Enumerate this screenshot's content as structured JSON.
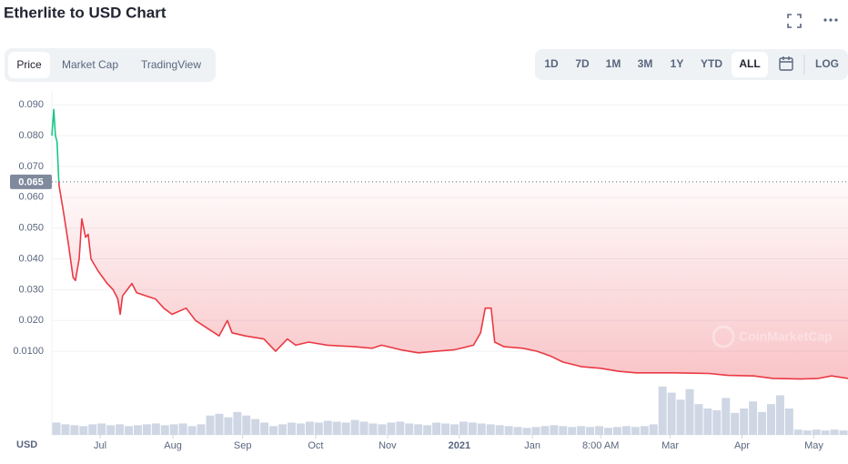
{
  "header": {
    "title": "Etherlite to USD Chart"
  },
  "tabs": [
    "Price",
    "Market Cap",
    "TradingView"
  ],
  "ranges": [
    "1D",
    "7D",
    "1M",
    "3M",
    "1Y",
    "YTD",
    "ALL"
  ],
  "log": "LOG",
  "chart_data": {
    "type": "line",
    "y_axis_label": "USD",
    "watermark": "CoinMarketCap",
    "up_color": "#16c784",
    "down_color": "#ea3943",
    "reference_price": {
      "value": 0.065,
      "label": "0.065"
    },
    "xlim": [
      0,
      338
    ],
    "ylim": [
      0,
      0.0945
    ],
    "grid": true,
    "xticks": [
      {
        "value": 20.5,
        "label": "Jul"
      },
      {
        "value": 51.4,
        "label": "Aug"
      },
      {
        "value": 81,
        "label": "Sep"
      },
      {
        "value": 112,
        "label": "Oct"
      },
      {
        "value": 142.5,
        "label": "Nov"
      },
      {
        "value": 173,
        "label": "2021"
      },
      {
        "value": 204,
        "label": "Jan"
      },
      {
        "value": 233,
        "label": "8:00 AM"
      },
      {
        "value": 262.5,
        "label": "Mar"
      },
      {
        "value": 293,
        "label": "Apr"
      },
      {
        "value": 323.5,
        "label": "May"
      }
    ],
    "yticks": [
      {
        "value": 0.09,
        "label": "0.090"
      },
      {
        "value": 0.08,
        "label": "0.080"
      },
      {
        "value": 0.07,
        "label": "0.070"
      },
      {
        "value": 0.06,
        "label": "0.060"
      },
      {
        "value": 0.05,
        "label": "0.050"
      },
      {
        "value": 0.04,
        "label": "0.040"
      },
      {
        "value": 0.03,
        "label": "0.030"
      },
      {
        "value": 0.02,
        "label": "0.020"
      },
      {
        "value": 0.01,
        "label": "0.0100"
      }
    ],
    "x": [
      0,
      0.8,
      1.5,
      2.2,
      3,
      5,
      7,
      9,
      10,
      11.6,
      12.7,
      14.3,
      15.4,
      16.6,
      19.7,
      23.5,
      26,
      28,
      29,
      30,
      34,
      36,
      40,
      44,
      47.5,
      51,
      57,
      61,
      67,
      71,
      74.5,
      76.5,
      82,
      90,
      95,
      100,
      103.5,
      109,
      117,
      128.6,
      136,
      140,
      148,
      155.6,
      163,
      171,
      179,
      182,
      184,
      186.5,
      188,
      192,
      200,
      206,
      211.6,
      217,
      225,
      233,
      240.5,
      248,
      264,
      279,
      287,
      298,
      306,
      318,
      325.5,
      331,
      338
    ],
    "series": [
      {
        "name": "Price",
        "values": [
          0.08,
          0.0885,
          0.08,
          0.078,
          0.064,
          0.055,
          0.045,
          0.034,
          0.033,
          0.04,
          0.053,
          0.047,
          0.048,
          0.04,
          0.036,
          0.032,
          0.03,
          0.027,
          0.022,
          0.028,
          0.032,
          0.029,
          0.028,
          0.027,
          0.024,
          0.022,
          0.024,
          0.02,
          0.017,
          0.015,
          0.02,
          0.016,
          0.015,
          0.014,
          0.01,
          0.014,
          0.012,
          0.013,
          0.012,
          0.0115,
          0.011,
          0.012,
          0.0105,
          0.0095,
          0.01,
          0.0105,
          0.012,
          0.016,
          0.024,
          0.024,
          0.013,
          0.0115,
          0.011,
          0.01,
          0.0085,
          0.0065,
          0.005,
          0.0045,
          0.0035,
          0.003,
          0.003,
          0.0028,
          0.0022,
          0.002,
          0.0012,
          0.001,
          0.0012,
          0.002,
          0.0012
        ]
      }
    ],
    "volume": {
      "color": "#cfd6e4",
      "ylim": [
        0,
        60
      ],
      "values": [
        14,
        12,
        11,
        10,
        12,
        13,
        11,
        12,
        10,
        11,
        12,
        13,
        11,
        12,
        13,
        10,
        12,
        22,
        24,
        20,
        26,
        22,
        18,
        14,
        10,
        12,
        14,
        13,
        15,
        14,
        16,
        15,
        14,
        17,
        15,
        13,
        12,
        14,
        15,
        13,
        12,
        11,
        14,
        13,
        12,
        15,
        14,
        13,
        12,
        11,
        10,
        9,
        8,
        9,
        10,
        11,
        10,
        9,
        10,
        9,
        10,
        8,
        9,
        10,
        9,
        10,
        12,
        55,
        48,
        40,
        52,
        35,
        30,
        28,
        42,
        25,
        30,
        38,
        26,
        35,
        45,
        30,
        6,
        5,
        6,
        5,
        6,
        5
      ]
    }
  }
}
